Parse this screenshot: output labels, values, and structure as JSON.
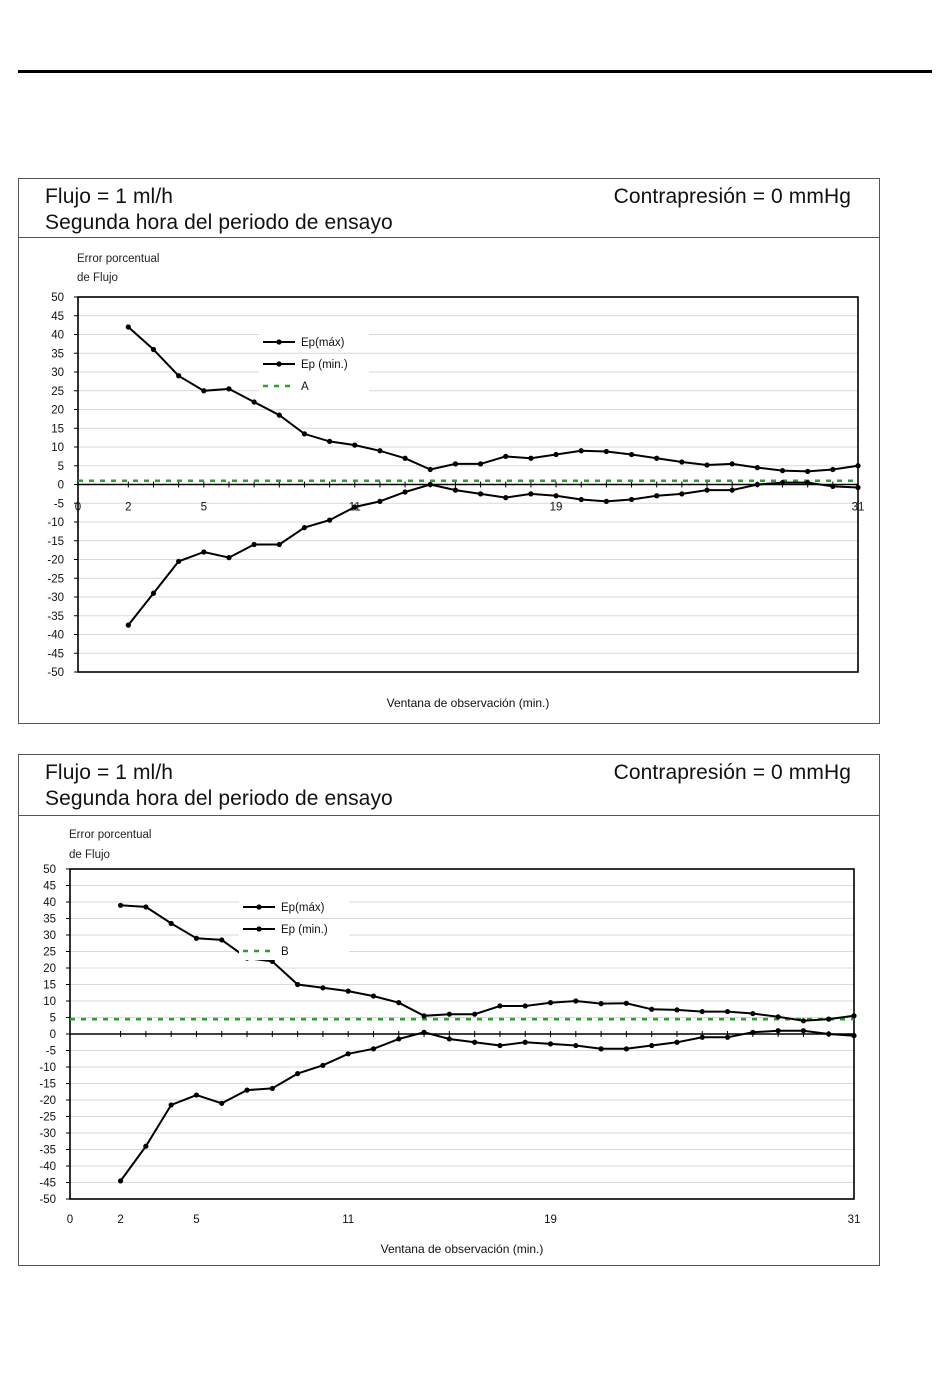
{
  "panels": [
    {
      "header": {
        "flow": "Flujo = 1 ml/h",
        "subtitle": "Segunda hora del periodo de ensayo",
        "pressure": "Contrapresión = 0 mmHg"
      },
      "chart_data": {
        "type": "line",
        "ylabel_line1": "Error porcentual",
        "ylabel_line2": "de Flujo",
        "xlabel": "Ventana de observación (min.)",
        "xlim": [
          0,
          31
        ],
        "ylim": [
          -50,
          50
        ],
        "x_ticks": [
          "0",
          "2",
          "5",
          "11",
          "19",
          "31"
        ],
        "y_ticks": [
          "50",
          "45",
          "40",
          "35",
          "30",
          "25",
          "20",
          "15",
          "10",
          "5",
          "0",
          "-5",
          "-10",
          "-15",
          "-20",
          "-25",
          "-30",
          "-35",
          "-40",
          "-45",
          "-50"
        ],
        "x": [
          2,
          3,
          4,
          5,
          6,
          7,
          8,
          9,
          10,
          11,
          12,
          13,
          14,
          15,
          16,
          17,
          18,
          19,
          20,
          21,
          22,
          23,
          24,
          25,
          26,
          27,
          28,
          29,
          30,
          31
        ],
        "series": [
          {
            "name": "Ep(máx)",
            "color": "#000000",
            "values": [
              42,
              36,
              29,
              25,
              25.5,
              22,
              18.5,
              13.5,
              11.5,
              10.5,
              9,
              7,
              4,
              5.5,
              5.5,
              7.5,
              7,
              8,
              9,
              8.8,
              8,
              7,
              6,
              5.2,
              5.5,
              4.5,
              3.7,
              3.5,
              4,
              5
            ]
          },
          {
            "name": "Ep (min.)",
            "color": "#000000",
            "values": [
              -37.5,
              -29,
              -20.5,
              -18,
              -19.5,
              -16,
              -16,
              -11.5,
              -9.5,
              -6,
              -4.5,
              -2,
              0,
              -1.5,
              -2.5,
              -3.5,
              -2.5,
              -3,
              -4,
              -4.5,
              -4,
              -3,
              -2.5,
              -1.5,
              -1.5,
              0,
              0.5,
              0.5,
              -0.5,
              -0.8
            ]
          }
        ],
        "reference": {
          "name": "A",
          "value": 1,
          "color": "#2e9e2e"
        }
      }
    },
    {
      "header": {
        "flow": "Flujo = 1 ml/h",
        "subtitle": "Segunda hora del periodo de ensayo",
        "pressure": "Contrapresión = 0 mmHg"
      },
      "chart_data": {
        "type": "line",
        "ylabel_line1": "Error porcentual",
        "ylabel_line2": "de Flujo",
        "xlabel": "Ventana de observación (min.)",
        "xlim": [
          0,
          31
        ],
        "ylim": [
          -50,
          50
        ],
        "x_ticks": [
          "0",
          "2",
          "5",
          "11",
          "19",
          "31"
        ],
        "y_ticks": [
          "50",
          "45",
          "40",
          "35",
          "30",
          "25",
          "20",
          "15",
          "10",
          "5",
          "0",
          "-5",
          "-10",
          "-15",
          "-20",
          "-25",
          "-30",
          "-35",
          "-40",
          "-45",
          "-50"
        ],
        "x": [
          2,
          3,
          4,
          5,
          6,
          7,
          8,
          9,
          10,
          11,
          12,
          13,
          14,
          15,
          16,
          17,
          18,
          19,
          20,
          21,
          22,
          23,
          24,
          25,
          26,
          27,
          28,
          29,
          30,
          31
        ],
        "series": [
          {
            "name": "Ep(máx)",
            "color": "#000000",
            "values": [
              39,
              38.5,
              33.5,
              29,
              28.5,
              23,
              22,
              15,
              14,
              13,
              11.5,
              9.5,
              5.5,
              6,
              6,
              8.5,
              8.5,
              9.5,
              10,
              9.2,
              9.3,
              7.5,
              7.3,
              6.8,
              6.8,
              6.2,
              5.2,
              4,
              4.5,
              5.5
            ]
          },
          {
            "name": "Ep (min.)",
            "color": "#000000",
            "values": [
              -44.5,
              -34,
              -21.5,
              -18.5,
              -21,
              -17,
              -16.5,
              -12,
              -9.5,
              -6,
              -4.5,
              -1.5,
              0.5,
              -1.5,
              -2.5,
              -3.5,
              -2.5,
              -3,
              -3.5,
              -4.5,
              -4.5,
              -3.5,
              -2.5,
              -1,
              -1,
              0.5,
              1,
              1,
              0,
              -0.5
            ]
          }
        ],
        "reference": {
          "name": "B",
          "value": 4.5,
          "color": "#2e9e2e"
        }
      }
    }
  ]
}
